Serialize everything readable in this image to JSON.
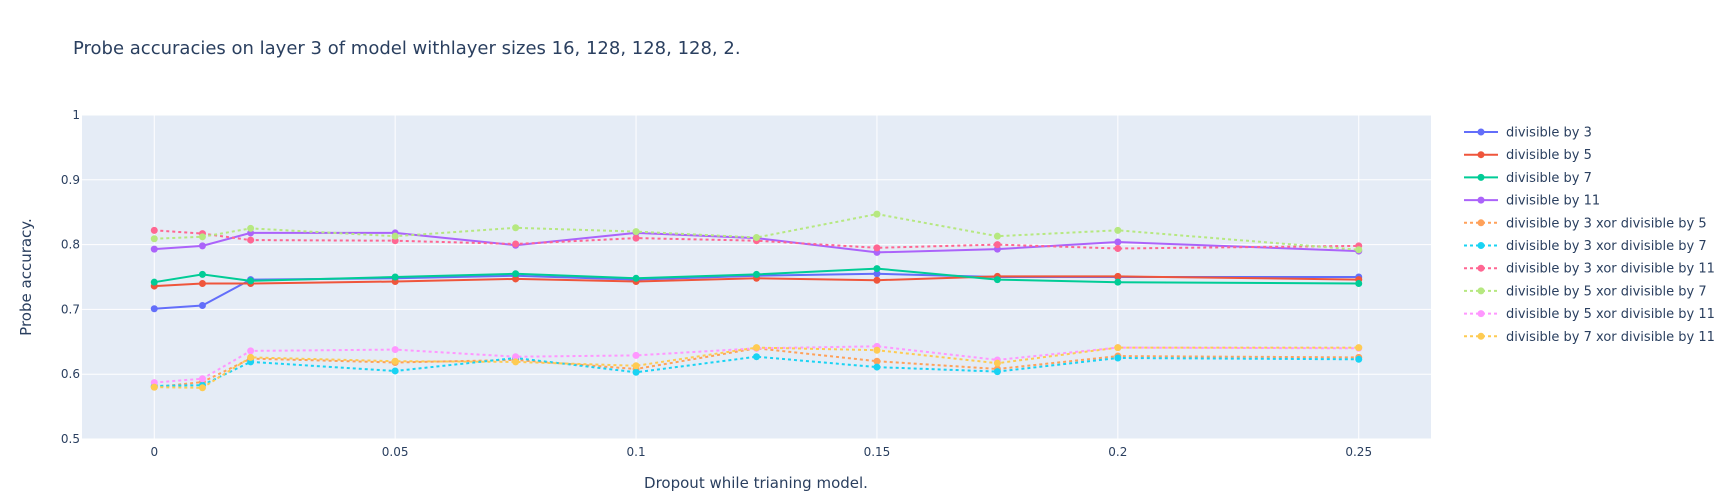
{
  "chart_data": {
    "type": "line",
    "title": "Probe accuracies on layer 3 of model withlayer sizes 16, 128, 128, 128, 2.",
    "xlabel": "Dropout while trianing model.",
    "ylabel": "Probe accuracy.",
    "xlim": [
      -0.015,
      0.265
    ],
    "ylim": [
      0.5,
      1.0
    ],
    "xticks": [
      0,
      0.05,
      0.1,
      0.15,
      0.2,
      0.25
    ],
    "xtick_labels": [
      "0",
      "0.05",
      "0.1",
      "0.15",
      "0.2",
      "0.25"
    ],
    "yticks": [
      0.5,
      0.6,
      0.7,
      0.8,
      0.9,
      1.0
    ],
    "ytick_labels": [
      "0.5",
      "0.6",
      "0.7",
      "0.8",
      "0.9",
      "1"
    ],
    "grid": true,
    "legend_position": "right",
    "x": [
      0,
      0.01,
      0.02,
      0.05,
      0.075,
      0.1,
      0.125,
      0.15,
      0.175,
      0.2,
      0.25
    ],
    "series": [
      {
        "name": "divisible by 3",
        "color": "#636efa",
        "dash": "solid",
        "values": [
          0.701,
          0.706,
          0.746,
          0.748,
          0.752,
          0.746,
          0.752,
          0.755,
          0.75,
          0.75,
          0.75
        ]
      },
      {
        "name": "divisible by 5",
        "color": "#ef553b",
        "dash": "solid",
        "values": [
          0.736,
          0.74,
          0.74,
          0.743,
          0.747,
          0.743,
          0.748,
          0.745,
          0.751,
          0.751,
          0.746
        ]
      },
      {
        "name": "divisible by 7",
        "color": "#00cc96",
        "dash": "solid",
        "values": [
          0.742,
          0.754,
          0.744,
          0.75,
          0.755,
          0.748,
          0.754,
          0.763,
          0.746,
          0.742,
          0.74
        ]
      },
      {
        "name": "divisible by 11",
        "color": "#ab63fa",
        "dash": "solid",
        "values": [
          0.793,
          0.798,
          0.818,
          0.818,
          0.799,
          0.818,
          0.81,
          0.788,
          0.793,
          0.804,
          0.79
        ]
      },
      {
        "name": "divisible by 3 xor divisible by 5",
        "color": "#ffa15a",
        "dash": "dot",
        "values": [
          0.58,
          0.588,
          0.624,
          0.618,
          0.622,
          0.608,
          0.64,
          0.62,
          0.608,
          0.628,
          0.626
        ]
      },
      {
        "name": "divisible by 3 xor divisible by 7",
        "color": "#19d3f3",
        "dash": "dot",
        "values": [
          0.582,
          0.583,
          0.619,
          0.605,
          0.625,
          0.603,
          0.627,
          0.611,
          0.604,
          0.625,
          0.623
        ]
      },
      {
        "name": "divisible by 3 xor divisible by 11",
        "color": "#ff6692",
        "dash": "dot",
        "values": [
          0.822,
          0.817,
          0.807,
          0.806,
          0.801,
          0.81,
          0.806,
          0.795,
          0.8,
          0.794,
          0.798
        ]
      },
      {
        "name": "divisible by 5 xor divisible by 7",
        "color": "#b6e880",
        "dash": "dot",
        "values": [
          0.809,
          0.812,
          0.825,
          0.813,
          0.826,
          0.82,
          0.811,
          0.847,
          0.813,
          0.822,
          0.792
        ]
      },
      {
        "name": "divisible by 5 xor divisible by 11",
        "color": "#ff97ff",
        "dash": "dot",
        "values": [
          0.587,
          0.593,
          0.636,
          0.638,
          0.627,
          0.629,
          0.64,
          0.643,
          0.622,
          0.641,
          0.64
        ]
      },
      {
        "name": "divisible by 7 xor divisible by 11",
        "color": "#fecb52",
        "dash": "dot",
        "values": [
          0.58,
          0.579,
          0.626,
          0.62,
          0.619,
          0.613,
          0.641,
          0.637,
          0.617,
          0.641,
          0.641
        ]
      }
    ]
  }
}
